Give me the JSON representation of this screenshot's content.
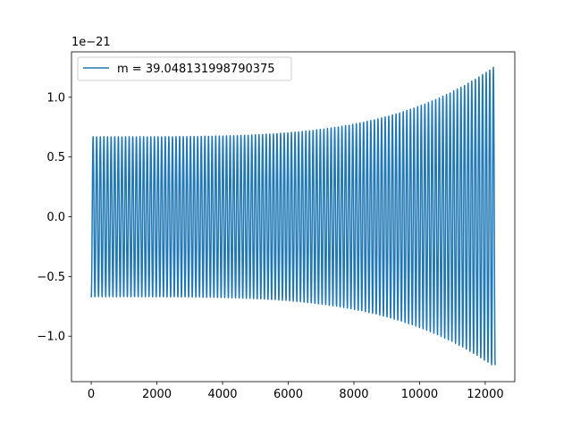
{
  "chart_data": {
    "type": "line",
    "title": "",
    "xlabel": "",
    "ylabel": "",
    "y_offset_label": "1e−21",
    "xlim": [
      -600,
      12900
    ],
    "ylim": [
      -1.38,
      1.38
    ],
    "x_ticks": [
      0,
      2000,
      4000,
      6000,
      8000,
      10000,
      12000
    ],
    "x_tick_labels": [
      "0",
      "2000",
      "4000",
      "6000",
      "8000",
      "10000",
      "12000"
    ],
    "y_ticks": [
      -1.0,
      -0.5,
      0.0,
      0.5,
      1.0
    ],
    "y_tick_labels": [
      "−1.0",
      "−0.5",
      "0.0",
      "0.5",
      "1.0"
    ],
    "grid": false,
    "legend_position": "upper-left",
    "series": [
      {
        "name": "m = 39.048131998790375",
        "color": "#1f77b4",
        "x_start": 0,
        "x_end": 12300,
        "start_value": -0.66,
        "amplitude_start": 0.67,
        "amplitude_end": 1.26,
        "cycles": 112,
        "samples": 4000
      }
    ]
  }
}
